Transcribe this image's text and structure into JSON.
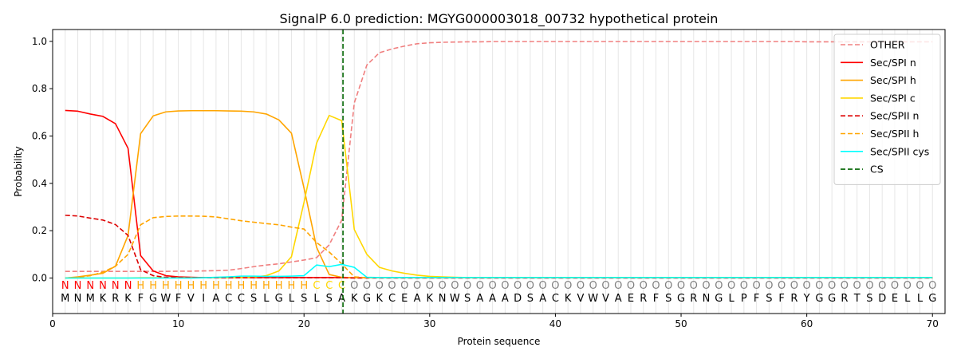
{
  "chart_data": {
    "type": "line",
    "title": "SignalP 6.0 prediction: MGYG000003018_00732 hypothetical protein",
    "xlabel": "Protein sequence",
    "ylabel": "Probability",
    "xlim": [
      0,
      71
    ],
    "ylim": [
      -0.15,
      1.05
    ],
    "x_ticks": [
      0,
      10,
      20,
      30,
      40,
      50,
      60,
      70
    ],
    "y_ticks": [
      0.0,
      0.2,
      0.4,
      0.6,
      0.8,
      1.0
    ],
    "x_tick_labels": [
      "0",
      "10",
      "20",
      "30",
      "40",
      "50",
      "60",
      "70"
    ],
    "y_tick_labels": [
      "0.0",
      "0.2",
      "0.4",
      "0.6",
      "0.8",
      "1.0"
    ],
    "legend_position": "top-right",
    "grid": "vertical lines at each residue",
    "sequence": [
      "M",
      "N",
      "M",
      "K",
      "R",
      "K",
      "F",
      "G",
      "W",
      "F",
      "V",
      "I",
      "A",
      "C",
      "C",
      "S",
      "L",
      "G",
      "L",
      "S",
      "L",
      "S",
      "A",
      "K",
      "G",
      "K",
      "C",
      "E",
      "A",
      "K",
      "N",
      "W",
      "S",
      "A",
      "A",
      "A",
      "D",
      "S",
      "A",
      "C",
      "K",
      "V",
      "W",
      "V",
      "A",
      "E",
      "R",
      "F",
      "S",
      "G",
      "R",
      "N",
      "G",
      "L",
      "P",
      "F",
      "S",
      "F",
      "R",
      "Y",
      "G",
      "G",
      "R",
      "T",
      "S",
      "D",
      "E",
      "L",
      "L",
      "G"
    ],
    "labels": [
      "N",
      "N",
      "N",
      "N",
      "N",
      "N",
      "H",
      "H",
      "H",
      "H",
      "H",
      "H",
      "H",
      "H",
      "H",
      "H",
      "H",
      "H",
      "H",
      "H",
      "C",
      "C",
      "C",
      "O",
      "O",
      "O",
      "O",
      "O",
      "O",
      "O",
      "O",
      "O",
      "O",
      "O",
      "O",
      "O",
      "O",
      "O",
      "O",
      "O",
      "O",
      "O",
      "O",
      "O",
      "O",
      "O",
      "O",
      "O",
      "O",
      "O",
      "O",
      "O",
      "O",
      "O",
      "O",
      "O",
      "O",
      "O",
      "O",
      "O",
      "O",
      "O",
      "O",
      "O",
      "O",
      "O",
      "O",
      "O",
      "O",
      "O"
    ],
    "label_colors": {
      "N": "#ff0000",
      "H": "#ffa500",
      "C": "#ffd700",
      "O": "#808080"
    },
    "cs_position": 23.1,
    "series": [
      {
        "name": "OTHER",
        "color": "#f08080",
        "dash": "dashed",
        "values": [
          0.028,
          0.028,
          0.028,
          0.028,
          0.028,
          0.028,
          0.028,
          0.028,
          0.028,
          0.029,
          0.029,
          0.03,
          0.031,
          0.033,
          0.04,
          0.048,
          0.055,
          0.06,
          0.068,
          0.076,
          0.086,
          0.14,
          0.245,
          0.74,
          0.9,
          0.952,
          0.968,
          0.98,
          0.99,
          0.994,
          0.996,
          0.997,
          0.998,
          0.998,
          0.999,
          0.999,
          0.999,
          0.999,
          0.999,
          0.999,
          0.999,
          0.999,
          0.999,
          0.999,
          0.999,
          0.999,
          0.999,
          0.999,
          0.999,
          0.999,
          0.999,
          0.999,
          0.999,
          0.999,
          0.999,
          0.999,
          0.999,
          0.999,
          0.999,
          0.998,
          0.998,
          0.998,
          0.998,
          0.998,
          0.998,
          0.998,
          0.998,
          0.998,
          0.998,
          0.998
        ]
      },
      {
        "name": "Sec/SPI n",
        "color": "#ff0000",
        "dash": "solid",
        "values": [
          0.708,
          0.705,
          0.693,
          0.683,
          0.652,
          0.548,
          0.095,
          0.03,
          0.01,
          0.005,
          0.003,
          0.002,
          0.002,
          0.002,
          0.002,
          0.002,
          0.002,
          0.002,
          0.002,
          0.002,
          0.002,
          0.002,
          0.002,
          0.001,
          0.001,
          0.001,
          0.001,
          0.001,
          0.001,
          0.001,
          0.001,
          0.001,
          0.001,
          0.001,
          0.001,
          0.001,
          0.001,
          0.001,
          0.001,
          0.001,
          0.001,
          0.001,
          0.001,
          0.001,
          0.001,
          0.001,
          0.001,
          0.001,
          0.001,
          0.001,
          0.001,
          0.001,
          0.001,
          0.001,
          0.001,
          0.001,
          0.001,
          0.001,
          0.001,
          0.001,
          0.001,
          0.001,
          0.001,
          0.001,
          0.001,
          0.001,
          0.001,
          0.001,
          0.001,
          0.001
        ]
      },
      {
        "name": "Sec/SPI h",
        "color": "#ffa500",
        "dash": "solid",
        "values": [
          0.0,
          0.005,
          0.012,
          0.02,
          0.05,
          0.18,
          0.61,
          0.685,
          0.702,
          0.706,
          0.707,
          0.707,
          0.707,
          0.706,
          0.705,
          0.702,
          0.693,
          0.668,
          0.612,
          0.38,
          0.13,
          0.015,
          0.003,
          0.001,
          0.001,
          0.001,
          0.001,
          0.001,
          0.001,
          0.001,
          0.001,
          0.001,
          0.001,
          0.001,
          0.001,
          0.001,
          0.001,
          0.001,
          0.001,
          0.001,
          0.001,
          0.001,
          0.001,
          0.001,
          0.001,
          0.001,
          0.001,
          0.001,
          0.001,
          0.001,
          0.001,
          0.001,
          0.001,
          0.001,
          0.001,
          0.001,
          0.001,
          0.001,
          0.001,
          0.001,
          0.001,
          0.001,
          0.001,
          0.001,
          0.001,
          0.001,
          0.001,
          0.001,
          0.001,
          0.001
        ]
      },
      {
        "name": "Sec/SPI c",
        "color": "#ffd700",
        "dash": "solid",
        "values": [
          0.0,
          0.0,
          0.0,
          0.0,
          0.0,
          0.0,
          0.001,
          0.001,
          0.001,
          0.001,
          0.001,
          0.001,
          0.001,
          0.001,
          0.002,
          0.004,
          0.01,
          0.03,
          0.09,
          0.32,
          0.57,
          0.687,
          0.665,
          0.205,
          0.1,
          0.045,
          0.03,
          0.02,
          0.012,
          0.007,
          0.005,
          0.003,
          0.002,
          0.002,
          0.002,
          0.002,
          0.002,
          0.002,
          0.002,
          0.002,
          0.002,
          0.002,
          0.002,
          0.002,
          0.002,
          0.002,
          0.002,
          0.002,
          0.002,
          0.002,
          0.002,
          0.002,
          0.002,
          0.002,
          0.002,
          0.002,
          0.002,
          0.002,
          0.002,
          0.002,
          0.002,
          0.002,
          0.002,
          0.002,
          0.002,
          0.002,
          0.002,
          0.002,
          0.002,
          0.002
        ]
      },
      {
        "name": "Sec/SPII n",
        "color": "#dd0000",
        "dash": "dashed",
        "values": [
          0.265,
          0.262,
          0.253,
          0.245,
          0.226,
          0.18,
          0.035,
          0.01,
          0.003,
          0.002,
          0.001,
          0.001,
          0.001,
          0.001,
          0.001,
          0.001,
          0.001,
          0.001,
          0.001,
          0.001,
          0.001,
          0.001,
          0.001,
          0.0,
          0.0,
          0.0,
          0.0,
          0.0,
          0.0,
          0.0,
          0.0,
          0.0,
          0.0,
          0.0,
          0.0,
          0.0,
          0.0,
          0.0,
          0.0,
          0.0,
          0.0,
          0.0,
          0.0,
          0.0,
          0.0,
          0.0,
          0.0,
          0.0,
          0.0,
          0.0,
          0.0,
          0.0,
          0.0,
          0.0,
          0.0,
          0.0,
          0.0,
          0.0,
          0.0,
          0.0,
          0.0,
          0.0,
          0.0,
          0.0,
          0.0,
          0.0,
          0.0,
          0.0,
          0.0,
          0.0
        ]
      },
      {
        "name": "Sec/SPII h",
        "color": "#ffa500",
        "dash": "dashed",
        "values": [
          0.0,
          0.003,
          0.01,
          0.025,
          0.05,
          0.1,
          0.225,
          0.255,
          0.26,
          0.262,
          0.262,
          0.261,
          0.258,
          0.25,
          0.242,
          0.236,
          0.23,
          0.225,
          0.215,
          0.207,
          0.15,
          0.11,
          0.06,
          0.005,
          0.001,
          0.001,
          0.001,
          0.001,
          0.001,
          0.001,
          0.001,
          0.001,
          0.001,
          0.001,
          0.001,
          0.001,
          0.001,
          0.001,
          0.001,
          0.001,
          0.001,
          0.001,
          0.001,
          0.001,
          0.001,
          0.001,
          0.001,
          0.001,
          0.001,
          0.001,
          0.001,
          0.001,
          0.001,
          0.001,
          0.001,
          0.001,
          0.001,
          0.001,
          0.001,
          0.001,
          0.001,
          0.001,
          0.001,
          0.001,
          0.001,
          0.001,
          0.001,
          0.001,
          0.001,
          0.001
        ]
      },
      {
        "name": "Sec/SPII cys",
        "color": "#00ffff",
        "dash": "solid",
        "values": [
          0.0,
          0.0,
          0.0,
          0.0,
          0.0,
          0.0,
          0.0,
          0.0,
          0.0,
          0.0,
          0.0,
          0.001,
          0.003,
          0.005,
          0.008,
          0.008,
          0.007,
          0.007,
          0.008,
          0.01,
          0.055,
          0.048,
          0.058,
          0.045,
          0.003,
          0.002,
          0.002,
          0.002,
          0.002,
          0.002,
          0.002,
          0.002,
          0.002,
          0.002,
          0.002,
          0.002,
          0.002,
          0.002,
          0.002,
          0.002,
          0.002,
          0.002,
          0.002,
          0.002,
          0.002,
          0.002,
          0.002,
          0.002,
          0.002,
          0.002,
          0.002,
          0.002,
          0.002,
          0.002,
          0.002,
          0.002,
          0.002,
          0.002,
          0.002,
          0.002,
          0.002,
          0.002,
          0.002,
          0.002,
          0.002,
          0.002,
          0.002,
          0.002,
          0.002,
          0.002
        ]
      }
    ],
    "cs_legend": {
      "name": "CS",
      "color": "#006400",
      "dash": "dashed"
    }
  }
}
